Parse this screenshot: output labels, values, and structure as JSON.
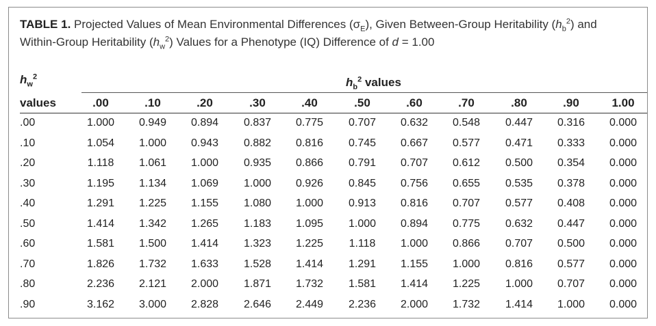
{
  "caption": {
    "label": "TABLE 1.",
    "text_1": " Projected Values of Mean Environmental Differences (σ",
    "sub_E": "E",
    "text_2": "), Given Between-Group Heritability (",
    "h_b_h": "h",
    "h_b_sub": "b",
    "h_b_sup": "2",
    "text_3": ") and Within-Group Heritability (",
    "h_w_h": "h",
    "h_w_sub": "w",
    "h_w_sup": "2",
    "text_4": ") Values for a Phenotype (IQ) Difference of ",
    "d_var": "d",
    "d_eq": " = 1.00"
  },
  "row_header": {
    "h": "h",
    "sub": "w",
    "sup": "2",
    "values_label": "values"
  },
  "col_header": {
    "h": "h",
    "sub": "b",
    "sup": "2",
    "values_label": " values"
  },
  "columns": [
    ".00",
    ".10",
    ".20",
    ".30",
    ".40",
    ".50",
    ".60",
    ".70",
    ".80",
    ".90",
    "1.00"
  ],
  "rows": [
    {
      "label": ".00",
      "cells": [
        "1.000",
        "0.949",
        "0.894",
        "0.837",
        "0.775",
        "0.707",
        "0.632",
        "0.548",
        "0.447",
        "0.316",
        "0.000"
      ]
    },
    {
      "label": ".10",
      "cells": [
        "1.054",
        "1.000",
        "0.943",
        "0.882",
        "0.816",
        "0.745",
        "0.667",
        "0.577",
        "0.471",
        "0.333",
        "0.000"
      ]
    },
    {
      "label": ".20",
      "cells": [
        "1.118",
        "1.061",
        "1.000",
        "0.935",
        "0.866",
        "0.791",
        "0.707",
        "0.612",
        "0.500",
        "0.354",
        "0.000"
      ]
    },
    {
      "label": ".30",
      "cells": [
        "1.195",
        "1.134",
        "1.069",
        "1.000",
        "0.926",
        "0.845",
        "0.756",
        "0.655",
        "0.535",
        "0.378",
        "0.000"
      ]
    },
    {
      "label": ".40",
      "cells": [
        "1.291",
        "1.225",
        "1.155",
        "1.080",
        "1.000",
        "0.913",
        "0.816",
        "0.707",
        "0.577",
        "0.408",
        "0.000"
      ]
    },
    {
      "label": ".50",
      "cells": [
        "1.414",
        "1.342",
        "1.265",
        "1.183",
        "1.095",
        "1.000",
        "0.894",
        "0.775",
        "0.632",
        "0.447",
        "0.000"
      ]
    },
    {
      "label": ".60",
      "cells": [
        "1.581",
        "1.500",
        "1.414",
        "1.323",
        "1.225",
        "1.118",
        "1.000",
        "0.866",
        "0.707",
        "0.500",
        "0.000"
      ]
    },
    {
      "label": ".70",
      "cells": [
        "1.826",
        "1.732",
        "1.633",
        "1.528",
        "1.414",
        "1.291",
        "1.155",
        "1.000",
        "0.816",
        "0.577",
        "0.000"
      ]
    },
    {
      "label": ".80",
      "cells": [
        "2.236",
        "2.121",
        "2.000",
        "1.871",
        "1.732",
        "1.581",
        "1.414",
        "1.225",
        "1.000",
        "0.707",
        "0.000"
      ]
    },
    {
      "label": ".90",
      "cells": [
        "3.162",
        "3.000",
        "2.828",
        "2.646",
        "2.449",
        "2.236",
        "2.000",
        "1.732",
        "1.414",
        "1.000",
        "0.000"
      ]
    }
  ]
}
